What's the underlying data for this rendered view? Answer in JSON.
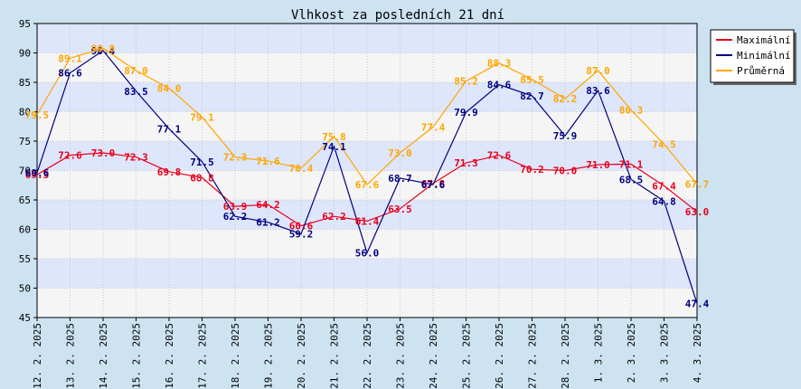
{
  "chart_data": {
    "type": "line",
    "title": "Vlhkost za posledních 21 dní",
    "xlabel": "",
    "ylabel": "",
    "ylim": [
      45,
      95
    ],
    "yticks": [
      45,
      50,
      55,
      60,
      65,
      70,
      75,
      80,
      85,
      90,
      95
    ],
    "grid": true,
    "legend_position": "top-right",
    "categories": [
      "12. 2. 2025",
      "13. 2. 2025",
      "14. 2. 2025",
      "15. 2. 2025",
      "16. 2. 2025",
      "17. 2. 2025",
      "18. 2. 2025",
      "19. 2. 2025",
      "20. 2. 2025",
      "21. 2. 2025",
      "22. 2. 2025",
      "23. 2. 2025",
      "24. 2. 2025",
      "25. 2. 2025",
      "26. 2. 2025",
      "27. 2. 2025",
      "28. 2. 2025",
      "1. 3. 2025",
      "2. 3. 2025",
      "3. 3. 2025",
      "4. 3. 2025"
    ],
    "series": [
      {
        "name": "Maximální",
        "color": "#e8001c",
        "values": [
          69.3,
          72.6,
          73.0,
          72.3,
          69.8,
          68.8,
          63.9,
          64.2,
          60.6,
          62.2,
          61.4,
          63.5,
          67.8,
          71.3,
          72.6,
          70.2,
          70.0,
          71.0,
          71.1,
          67.4,
          63.0
        ]
      },
      {
        "name": "Minimální",
        "color": "#000080",
        "values": [
          69.6,
          86.6,
          90.4,
          83.5,
          77.1,
          71.5,
          62.2,
          61.2,
          59.2,
          74.1,
          56.0,
          68.7,
          67.6,
          79.9,
          84.6,
          82.7,
          75.9,
          83.6,
          68.5,
          64.8,
          47.4
        ]
      },
      {
        "name": "Průměrná",
        "color": "#ffa500",
        "values": [
          79.5,
          89.1,
          90.8,
          87.0,
          84.0,
          79.1,
          72.3,
          71.6,
          70.4,
          75.8,
          67.6,
          73.0,
          77.4,
          85.2,
          88.3,
          85.5,
          82.2,
          87.0,
          80.3,
          74.5,
          67.7
        ]
      }
    ]
  }
}
